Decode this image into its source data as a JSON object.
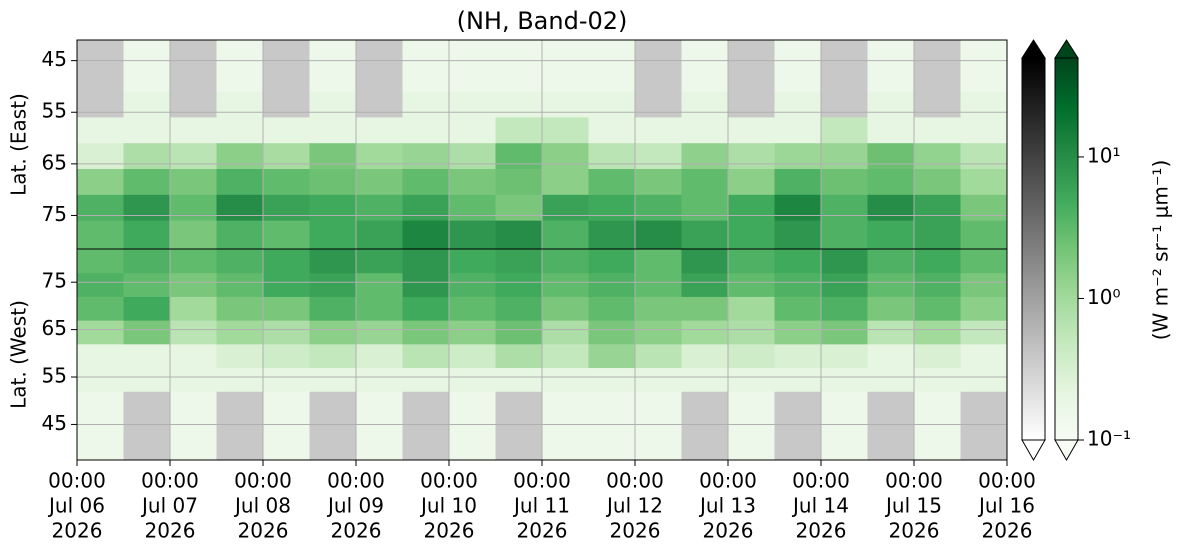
{
  "chart_data": {
    "type": "heatmap",
    "title": "(NH, Band-02)",
    "xlim": [
      "2026-07-06T00:00",
      "2026-07-16T00:00"
    ],
    "xticks": [
      {
        "value": "2026-07-06T00:00",
        "label": [
          "00:00",
          "Jul 06",
          "2026"
        ]
      },
      {
        "value": "2026-07-07T00:00",
        "label": [
          "00:00",
          "Jul 07",
          "2026"
        ]
      },
      {
        "value": "2026-07-08T00:00",
        "label": [
          "00:00",
          "Jul 08",
          "2026"
        ]
      },
      {
        "value": "2026-07-09T00:00",
        "label": [
          "00:00",
          "Jul 09",
          "2026"
        ]
      },
      {
        "value": "2026-07-10T00:00",
        "label": [
          "00:00",
          "Jul 10",
          "2026"
        ]
      },
      {
        "value": "2026-07-11T00:00",
        "label": [
          "00:00",
          "Jul 11",
          "2026"
        ]
      },
      {
        "value": "2026-07-12T00:00",
        "label": [
          "00:00",
          "Jul 12",
          "2026"
        ]
      },
      {
        "value": "2026-07-13T00:00",
        "label": [
          "00:00",
          "Jul 13",
          "2026"
        ]
      },
      {
        "value": "2026-07-14T00:00",
        "label": [
          "00:00",
          "Jul 14",
          "2026"
        ]
      },
      {
        "value": "2026-07-15T00:00",
        "label": [
          "00:00",
          "Jul 15",
          "2026"
        ]
      },
      {
        "value": "2026-07-16T00:00",
        "label": [
          "00:00",
          "Jul 16",
          "2026"
        ]
      }
    ],
    "x": [
      "2026-07-06T00:00",
      "2026-07-06T12:00",
      "2026-07-07T00:00",
      "2026-07-07T12:00",
      "2026-07-08T00:00",
      "2026-07-08T12:00",
      "2026-07-09T00:00",
      "2026-07-09T12:00",
      "2026-07-10T00:00",
      "2026-07-10T12:00",
      "2026-07-11T00:00",
      "2026-07-11T12:00",
      "2026-07-12T00:00",
      "2026-07-12T12:00",
      "2026-07-13T00:00",
      "2026-07-13T12:00",
      "2026-07-14T00:00",
      "2026-07-14T12:00",
      "2026-07-15T00:00",
      "2026-07-15T12:00"
    ],
    "grid": true,
    "log_color": true,
    "clim": [
      0.1,
      50
    ],
    "colors": [
      "#f7fcf5",
      "#e5f5e0",
      "#c7e9c0",
      "#a1d99b",
      "#74c476",
      "#41ab5d",
      "#238b45",
      "#006d2c",
      "#00441b"
    ],
    "missing_color": "#c8c8c8",
    "colorbar_label": "(W m⁻² sr⁻¹ μm⁻¹)",
    "cticks": [
      {
        "value": 0.1,
        "label": "10⁻¹"
      },
      {
        "value": 1,
        "label": "10⁰"
      },
      {
        "value": 10,
        "label": "10¹"
      }
    ],
    "panels": [
      {
        "ylabel": "Lat. (East)",
        "ylim": [
          41,
          81.5
        ],
        "inverted": true,
        "yticks": [
          45,
          55,
          65,
          75
        ],
        "y_edges": [
          41,
          46,
          51,
          56,
          61,
          66,
          71,
          76,
          81.5
        ],
        "z": [
          [
            null,
            0.15,
            null,
            0.15,
            null,
            0.15,
            null,
            0.15,
            0.15,
            0.15,
            0.15,
            0.15,
            null,
            0.15,
            null,
            0.15,
            null,
            0.15,
            null,
            0.15
          ],
          [
            null,
            0.15,
            null,
            0.15,
            null,
            0.15,
            null,
            0.15,
            0.15,
            0.15,
            0.15,
            0.15,
            null,
            0.15,
            null,
            0.15,
            null,
            0.15,
            null,
            0.15
          ],
          [
            null,
            0.2,
            null,
            0.2,
            null,
            0.2,
            null,
            0.2,
            0.2,
            0.2,
            0.2,
            0.2,
            null,
            0.2,
            null,
            0.2,
            null,
            0.2,
            null,
            0.2
          ],
          [
            0.2,
            0.2,
            0.2,
            0.2,
            0.2,
            0.2,
            0.2,
            0.2,
            0.2,
            0.5,
            0.5,
            0.2,
            0.2,
            0.2,
            0.2,
            0.2,
            0.5,
            0.2,
            0.2,
            0.2
          ],
          [
            0.3,
            0.8,
            0.6,
            1.5,
            0.9,
            2,
            1,
            1.2,
            0.8,
            3,
            1.5,
            0.6,
            0.5,
            1.4,
            0.8,
            1.1,
            1.2,
            2.5,
            1.3,
            0.6
          ],
          [
            1.5,
            3,
            2,
            4,
            3,
            2.5,
            2,
            3,
            2,
            2.5,
            1.5,
            3,
            2,
            3,
            1.5,
            4,
            2.5,
            3,
            2,
            1
          ],
          [
            4,
            8,
            3,
            10,
            6,
            5,
            4,
            6,
            3,
            2,
            6,
            5,
            4,
            3,
            5,
            12,
            4,
            10,
            6,
            2
          ],
          [
            3,
            5,
            2,
            4,
            3,
            5,
            6,
            12,
            8,
            10,
            4,
            8,
            10,
            6,
            5,
            8,
            4,
            5,
            6,
            3
          ]
        ]
      },
      {
        "ylabel": "Lat. (West)",
        "ylim": [
          37.5,
          82
        ],
        "inverted": false,
        "yticks": [
          45,
          55,
          65,
          75
        ],
        "y_edges": [
          37.5,
          42,
          47,
          52,
          57,
          62,
          67,
          72,
          77,
          82
        ],
        "z": [
          [
            0.15,
            null,
            0.15,
            null,
            0.15,
            null,
            0.15,
            null,
            0.15,
            null,
            0.15,
            0.15,
            0.15,
            null,
            0.15,
            null,
            0.15,
            null,
            0.15,
            null
          ],
          [
            0.15,
            null,
            0.15,
            null,
            0.15,
            null,
            0.15,
            null,
            0.15,
            null,
            0.15,
            0.15,
            0.15,
            null,
            0.15,
            null,
            0.15,
            null,
            0.15,
            null
          ],
          [
            0.15,
            null,
            0.15,
            null,
            0.15,
            null,
            0.15,
            null,
            0.15,
            null,
            0.15,
            0.15,
            0.15,
            null,
            0.15,
            null,
            0.15,
            null,
            0.15,
            null
          ],
          [
            0.2,
            0.2,
            0.2,
            0.2,
            0.2,
            0.2,
            0.2,
            0.2,
            0.2,
            0.2,
            0.2,
            0.2,
            0.2,
            0.2,
            0.2,
            0.2,
            0.2,
            0.2,
            0.2,
            0.2
          ],
          [
            0.2,
            0.2,
            0.2,
            0.3,
            0.4,
            0.5,
            0.3,
            0.6,
            0.4,
            0.8,
            0.5,
            1.2,
            0.6,
            0.3,
            0.4,
            0.3,
            0.3,
            0.2,
            0.3,
            0.2
          ],
          [
            1,
            2,
            0.6,
            1,
            0.8,
            1.5,
            1.2,
            2,
            1.5,
            2.5,
            0.8,
            2,
            1.5,
            1,
            0.8,
            1.5,
            2,
            0.6,
            1,
            0.5
          ],
          [
            3,
            5,
            1,
            2,
            2,
            4,
            3,
            5,
            3,
            4,
            2,
            3,
            2,
            2,
            1,
            3,
            4,
            2,
            3,
            1.5
          ],
          [
            4,
            3,
            2,
            3,
            5,
            6,
            3,
            8,
            4,
            5,
            3,
            4,
            3,
            6,
            3,
            4,
            6,
            3,
            4,
            2
          ],
          [
            3,
            4,
            3,
            4,
            5,
            8,
            6,
            8,
            5,
            6,
            4,
            5,
            3,
            8,
            4,
            5,
            8,
            4,
            5,
            3
          ]
        ]
      }
    ]
  }
}
